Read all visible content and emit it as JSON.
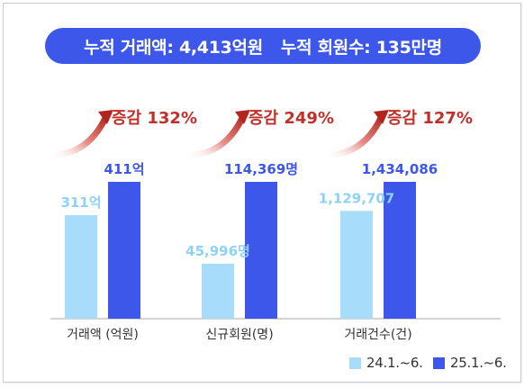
{
  "header": {
    "total_amount": "누적 거래액: 4,413억원",
    "total_members": "누적 회원수: 135만명"
  },
  "legend": [
    {
      "label": "24.1.~6.",
      "color": "#a8dcfb"
    },
    {
      "label": "25.1.~6.",
      "color": "#3d57ea"
    }
  ],
  "colors": {
    "series_light": "#a8dcfb",
    "series_dark": "#3d57ea",
    "label_light": "#8fd2f4",
    "increase_red": "#c0302a",
    "baseline": "#aaaaaa"
  },
  "chart_data": {
    "type": "bar",
    "categories": [
      "거래액 (억원)",
      "신규회원(명)",
      "거래건수(건)"
    ],
    "series": [
      {
        "name": "24.1.~6.",
        "values": [
          311,
          45996,
          1129707
        ],
        "labels": [
          "311억",
          "45,996명",
          "1,129,707"
        ]
      },
      {
        "name": "25.1.~6.",
        "values": [
          411,
          114369,
          1434086
        ],
        "labels": [
          "411억",
          "114,369명",
          "1,434,086"
        ]
      }
    ],
    "annotations": [
      "증감 132%",
      "증감 249%",
      "증감 127%"
    ]
  }
}
